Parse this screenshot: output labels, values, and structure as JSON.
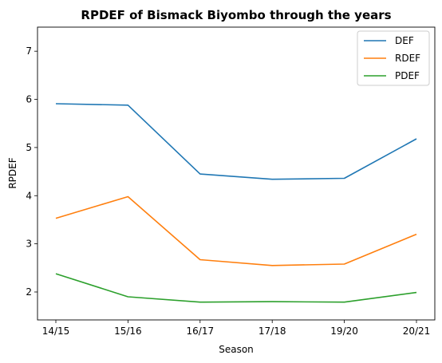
{
  "chart_data": {
    "type": "line",
    "title": "RPDEF of Bismack Biyombo through the years",
    "xlabel": "Season",
    "ylabel": "RPDEF",
    "categories": [
      "14/15",
      "15/16",
      "16/17",
      "17/18",
      "19/20",
      "20/21"
    ],
    "ylim": [
      1.42,
      7.5
    ],
    "yticks": [
      2,
      3,
      4,
      5,
      6,
      7
    ],
    "grid": false,
    "legend_position": "top-right",
    "series": [
      {
        "name": "DEF",
        "color": "#1f77b4",
        "values": [
          5.91,
          5.88,
          4.45,
          4.34,
          4.36,
          5.18
        ]
      },
      {
        "name": "RDEF",
        "color": "#ff7f0e",
        "values": [
          3.53,
          3.98,
          2.67,
          2.55,
          2.58,
          3.2
        ]
      },
      {
        "name": "PDEF",
        "color": "#2ca02c",
        "values": [
          2.38,
          1.9,
          1.79,
          1.8,
          1.79,
          1.99
        ]
      }
    ]
  }
}
